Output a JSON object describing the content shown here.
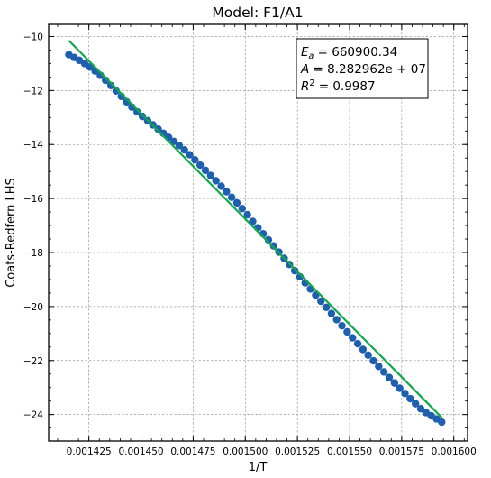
{
  "chart_data": {
    "type": "scatter",
    "title": "Model: F1/A1",
    "xlabel": "1/T",
    "ylabel": "Coats-Redfern LHS",
    "xlim": [
      0.0014057,
      0.0016066
    ],
    "ylim": [
      -24.98,
      -9.55
    ],
    "xticks": [
      0.001425,
      0.00145,
      0.001475,
      0.0015,
      0.001525,
      0.00155,
      0.001575,
      0.0016
    ],
    "xtick_labels": [
      "0.001425",
      "0.001450",
      "0.001475",
      "0.001500",
      "0.001525",
      "0.001550",
      "0.001575",
      "0.001600"
    ],
    "yticks": [
      -24,
      -22,
      -20,
      -18,
      -16,
      -14,
      -12,
      -10
    ],
    "ytick_labels": [
      "−24",
      "−22",
      "−20",
      "−18",
      "−16",
      "−14",
      "−12",
      "−10"
    ],
    "grid": true,
    "annotation": {
      "lines": [
        {
          "sym": "E",
          "sub": "a",
          "text": " = 660900.34"
        },
        {
          "sym": "A",
          "sub": "",
          "text": " = 8.282962e + 07"
        },
        {
          "sym": "R",
          "sup": "2",
          "text": " = 0.9987"
        }
      ],
      "placement": "top-right"
    },
    "series": [
      {
        "kind": "scatter",
        "color": "#1f5fb0",
        "x_start": 0.0014154,
        "x_end": 0.0015942,
        "count": 72,
        "points": [
          [
            0.0014154,
            -10.67
          ],
          [
            0.00142,
            -10.86
          ],
          [
            0.001425,
            -11.1
          ],
          [
            0.00143,
            -11.4
          ],
          [
            0.001435,
            -11.77
          ],
          [
            0.00144,
            -12.17
          ],
          [
            0.001445,
            -12.57
          ],
          [
            0.00145,
            -12.92
          ],
          [
            0.001455,
            -13.23
          ],
          [
            0.00146,
            -13.54
          ],
          [
            0.001465,
            -13.84
          ],
          [
            0.00147,
            -14.14
          ],
          [
            0.001475,
            -14.5
          ],
          [
            0.00148,
            -14.89
          ],
          [
            0.001485,
            -15.27
          ],
          [
            0.00149,
            -15.67
          ],
          [
            0.001495,
            -16.08
          ],
          [
            0.0015,
            -16.5
          ],
          [
            0.001505,
            -16.99
          ],
          [
            0.00151,
            -17.43
          ],
          [
            0.001515,
            -17.88
          ],
          [
            0.00152,
            -18.34
          ],
          [
            0.001525,
            -18.79
          ],
          [
            0.00153,
            -19.24
          ],
          [
            0.001535,
            -19.69
          ],
          [
            0.00154,
            -20.14
          ],
          [
            0.001545,
            -20.59
          ],
          [
            0.00155,
            -21.04
          ],
          [
            0.001555,
            -21.47
          ],
          [
            0.00156,
            -21.89
          ],
          [
            0.001565,
            -22.3
          ],
          [
            0.00157,
            -22.71
          ],
          [
            0.001575,
            -23.1
          ],
          [
            0.00158,
            -23.48
          ],
          [
            0.001585,
            -23.85
          ],
          [
            0.0015942,
            -24.28
          ]
        ]
      },
      {
        "kind": "line",
        "color": "#10a84c",
        "points": [
          [
            0.0014154,
            -10.15
          ],
          [
            0.0015942,
            -24.11
          ]
        ]
      }
    ]
  }
}
